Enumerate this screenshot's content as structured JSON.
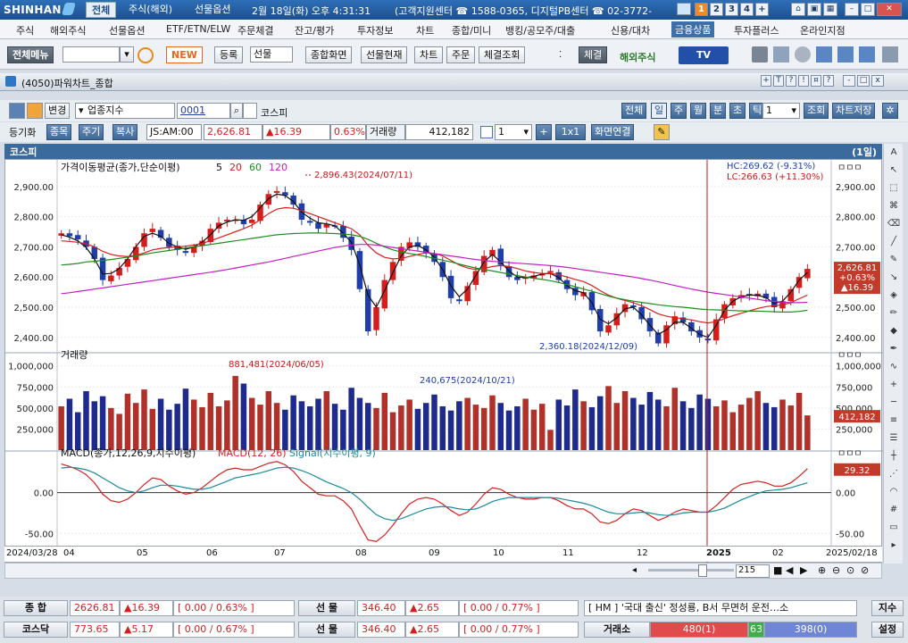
{
  "app": {
    "logo": "SHINHAN",
    "top_tabs": [
      "전체",
      "주식(해외)",
      "선물옵션"
    ],
    "datetime": "2월 18일(화) 오후 4:31:31",
    "support": "(고객지원센터 ☎ 1588-0365, 디지털PB센터 ☎ 02-3772-",
    "screen_numbers": [
      "1",
      "2",
      "3",
      "4",
      "+"
    ]
  },
  "menu": [
    "주식",
    "해외주식",
    "선물옵션",
    "ETF/ETN/ELW",
    "주문체결",
    "잔고/평가",
    "투자정보",
    "차트",
    "종합/미니",
    "뱅킹/공모주/대출",
    "신용/대차",
    "금융상품",
    "투자플러스",
    "온라인지점"
  ],
  "toolbar": {
    "all_menu": "전체메뉴",
    "new_badge": "NEW",
    "register": "등록",
    "register_select": "선물",
    "buttons": [
      "종합화면",
      "선물현재",
      "차트",
      "주문",
      "체결조회"
    ],
    "exec": "체결",
    "overseas": "해외주식",
    "tv": "TV"
  },
  "window": {
    "title": "(4050)파워차트_종합",
    "controls": [
      "+",
      "T",
      "?",
      "!",
      "¤",
      "?",
      "-",
      "□",
      "x"
    ]
  },
  "controls": {
    "change": "변경",
    "index_type": "업종지수",
    "code": "0001",
    "name": "코스피",
    "periods": [
      "전체",
      "일",
      "주",
      "월",
      "분",
      "초",
      "틱"
    ],
    "active_period": "일",
    "count": "1",
    "query": "조회",
    "save": "차트저장",
    "row2_label": "등기화",
    "row2_buttons": [
      "종목",
      "주기",
      "복사"
    ],
    "time_field": "JS:AM:00",
    "price": "2,626.81",
    "change_val": "▲16.39",
    "pct": "0.63%",
    "vol_label": "거래량",
    "vol": "412,182",
    "layout_count": "1",
    "plus": "+",
    "layout_grid": "1x1",
    "link": "화면연결"
  },
  "chart_title": {
    "name": "코스피",
    "period": "(1일)"
  },
  "chart_data": [
    {
      "type": "candlestick",
      "title": "가격이동평균(종가,단순이평) 5 20 60 120",
      "ma_periods": [
        "5",
        "20",
        "60",
        "120"
      ],
      "ma_colors": [
        "#111111",
        "#d42020",
        "#1e8c1e",
        "#c020c0"
      ],
      "y_ticks": [
        "2,900.00",
        "2,800.00",
        "2,700.00",
        "2,600.00",
        "2,500.00",
        "2,400.00"
      ],
      "y_tick_values": [
        2900,
        2800,
        2700,
        2600,
        2500,
        2400
      ],
      "ylim": [
        2355,
        2935
      ],
      "close_path": [
        2745,
        2735,
        2725,
        2700,
        2660,
        2590,
        2605,
        2630,
        2660,
        2700,
        2745,
        2760,
        2730,
        2700,
        2690,
        2680,
        2700,
        2720,
        2760,
        2780,
        2790,
        2790,
        2775,
        2790,
        2840,
        2875,
        2885,
        2870,
        2840,
        2790,
        2780,
        2760,
        2775,
        2770,
        2730,
        2690,
        2560,
        2420,
        2500,
        2590,
        2650,
        2700,
        2715,
        2700,
        2680,
        2650,
        2600,
        2530,
        2520,
        2570,
        2620,
        2670,
        2690,
        2640,
        2600,
        2590,
        2600,
        2605,
        2610,
        2620,
        2590,
        2560,
        2540,
        2550,
        2490,
        2420,
        2440,
        2480,
        2510,
        2500,
        2460,
        2420,
        2380,
        2440,
        2470,
        2450,
        2420,
        2400,
        2390,
        2460,
        2510,
        2530,
        2540,
        2540,
        2545,
        2530,
        2500,
        2520,
        2560,
        2600,
        2627
      ],
      "ma5_path": [
        2740,
        2732,
        2720,
        2698,
        2660,
        2610,
        2612,
        2628,
        2660,
        2700,
        2735,
        2745,
        2735,
        2712,
        2700,
        2692,
        2700,
        2716,
        2740,
        2770,
        2782,
        2790,
        2788,
        2800,
        2830,
        2860,
        2875,
        2870,
        2850,
        2815,
        2795,
        2780,
        2776,
        2770,
        2745,
        2715,
        2640,
        2540,
        2500,
        2555,
        2615,
        2670,
        2700,
        2705,
        2690,
        2665,
        2625,
        2570,
        2535,
        2560,
        2605,
        2650,
        2675,
        2650,
        2620,
        2600,
        2598,
        2602,
        2610,
        2612,
        2598,
        2572,
        2555,
        2548,
        2515,
        2460,
        2445,
        2465,
        2495,
        2500,
        2475,
        2440,
        2410,
        2425,
        2450,
        2450,
        2430,
        2410,
        2400,
        2440,
        2490,
        2520,
        2535,
        2540,
        2540,
        2532,
        2512,
        2520,
        2550,
        2590,
        2615
      ],
      "ma20_path": [
        2720,
        2718,
        2715,
        2710,
        2700,
        2685,
        2675,
        2670,
        2668,
        2672,
        2680,
        2690,
        2695,
        2698,
        2700,
        2702,
        2706,
        2712,
        2720,
        2730,
        2740,
        2750,
        2760,
        2772,
        2790,
        2810,
        2825,
        2830,
        2828,
        2820,
        2810,
        2800,
        2790,
        2780,
        2770,
        2760,
        2740,
        2705,
        2680,
        2665,
        2660,
        2662,
        2668,
        2675,
        2680,
        2678,
        2670,
        2655,
        2640,
        2630,
        2625,
        2628,
        2635,
        2638,
        2635,
        2628,
        2620,
        2615,
        2612,
        2612,
        2608,
        2600,
        2592,
        2585,
        2572,
        2555,
        2540,
        2530,
        2522,
        2515,
        2505,
        2492,
        2478,
        2470,
        2465,
        2462,
        2458,
        2452,
        2448,
        2452,
        2462,
        2472,
        2480,
        2488,
        2496,
        2502,
        2505,
        2508,
        2515,
        2528,
        2540
      ],
      "ma60_path": [
        2640,
        2642,
        2645,
        2650,
        2652,
        2655,
        2658,
        2662,
        2666,
        2670,
        2675,
        2680,
        2684,
        2688,
        2692,
        2696,
        2700,
        2704,
        2708,
        2712,
        2716,
        2720,
        2724,
        2728,
        2732,
        2736,
        2740,
        2742,
        2744,
        2745,
        2746,
        2746,
        2745,
        2744,
        2742,
        2740,
        2735,
        2725,
        2712,
        2700,
        2690,
        2683,
        2678,
        2673,
        2668,
        2662,
        2656,
        2650,
        2643,
        2636,
        2630,
        2625,
        2620,
        2615,
        2610,
        2605,
        2600,
        2596,
        2592,
        2588,
        2582,
        2575,
        2568,
        2560,
        2553,
        2545,
        2537,
        2530,
        2525,
        2520,
        2516,
        2512,
        2508,
        2505,
        2502,
        2500,
        2497,
        2494,
        2492,
        2491,
        2490,
        2489,
        2488,
        2487,
        2487,
        2486,
        2485,
        2484,
        2484,
        2486,
        2490
      ],
      "ma120_path": [
        2545,
        2548,
        2552,
        2556,
        2560,
        2564,
        2568,
        2572,
        2576,
        2580,
        2584,
        2588,
        2592,
        2596,
        2600,
        2604,
        2608,
        2612,
        2616,
        2620,
        2625,
        2630,
        2635,
        2640,
        2645,
        2650,
        2656,
        2662,
        2668,
        2674,
        2680,
        2686,
        2692,
        2698,
        2702,
        2706,
        2708,
        2708,
        2706,
        2702,
        2698,
        2694,
        2690,
        2686,
        2682,
        2678,
        2674,
        2670,
        2666,
        2662,
        2658,
        2655,
        2652,
        2650,
        2648,
        2646,
        2644,
        2642,
        2640,
        2638,
        2635,
        2632,
        2628,
        2624,
        2620,
        2616,
        2612,
        2608,
        2604,
        2600,
        2595,
        2590,
        2584,
        2578,
        2572,
        2566,
        2560,
        2555,
        2550,
        2546,
        2542,
        2538,
        2534,
        2530,
        2526,
        2522,
        2519,
        2517,
        2515,
        2515,
        2516
      ],
      "annotations": {
        "high": "2,896.43(2024/07/11)",
        "low": "2,360.18(2024/12/09)",
        "hc": "HC:269.62 (-9.31%)",
        "lc": "LC:266.63 (+11.30%)"
      },
      "last_label": [
        "2,626.81",
        "+0.63%",
        "▲16.39"
      ],
      "panel_buttons": "ㅁㅁㅁ"
    },
    {
      "type": "bar",
      "title": "거래량",
      "y_ticks": [
        "1,000,000",
        "750,000",
        "500,000",
        "250,000"
      ],
      "y_tick_values": [
        1000000,
        750000,
        500000,
        250000
      ],
      "ylim": [
        0,
        1050000
      ],
      "values": [
        520000,
        610000,
        450000,
        700000,
        580000,
        640000,
        500000,
        430000,
        670000,
        560000,
        720000,
        490000,
        610000,
        480000,
        550000,
        730000,
        600000,
        510000,
        680000,
        520000,
        590000,
        881481,
        790000,
        620000,
        540000,
        700000,
        560000,
        480000,
        650000,
        580000,
        520000,
        610000,
        700000,
        550000,
        480000,
        740000,
        620000,
        560000,
        500000,
        680000,
        450000,
        530000,
        600000,
        490000,
        560000,
        660000,
        520000,
        470000,
        580000,
        620000,
        540000,
        500000,
        650000,
        560000,
        470000,
        520000,
        610000,
        480000,
        550000,
        240675,
        600000,
        530000,
        720000,
        580000,
        510000,
        640000,
        760000,
        560000,
        700000,
        620000,
        540000,
        690000,
        600000,
        520000,
        740000,
        580000,
        500000,
        660000,
        610000,
        520000,
        590000,
        450000,
        540000,
        620000,
        700000,
        560000,
        510000,
        600000,
        530000,
        680000,
        412182
      ],
      "annotations": {
        "high": "881,481(2024/06/05)",
        "mid": "240,675(2024/10/21)"
      },
      "last_label": "412,182",
      "panel_buttons": "ㅁㅁㅁ"
    },
    {
      "type": "line",
      "title": "MACD(종가,12,26,9,지수이평)",
      "legend": [
        "MACD(12, 26)",
        "Signal(지수이평, 9)"
      ],
      "y_ticks": [
        "0.00",
        "-50.00"
      ],
      "y_tick_values": [
        0,
        -50
      ],
      "ylim": [
        -65,
        40
      ],
      "macd": [
        35,
        32,
        28,
        22,
        12,
        -2,
        -10,
        -12,
        -8,
        0,
        10,
        18,
        16,
        8,
        2,
        -2,
        0,
        6,
        14,
        22,
        28,
        30,
        28,
        28,
        32,
        36,
        38,
        34,
        26,
        14,
        6,
        -2,
        -4,
        -4,
        -10,
        -20,
        -40,
        -58,
        -60,
        -52,
        -40,
        -26,
        -14,
        -8,
        -6,
        -8,
        -14,
        -22,
        -28,
        -24,
        -14,
        -2,
        6,
        4,
        -2,
        -6,
        -8,
        -8,
        -6,
        -6,
        -10,
        -16,
        -20,
        -20,
        -26,
        -36,
        -38,
        -34,
        -26,
        -20,
        -22,
        -28,
        -34,
        -30,
        -24,
        -20,
        -22,
        -24,
        -24,
        -16,
        -6,
        4,
        10,
        12,
        14,
        12,
        8,
        8,
        12,
        20,
        29.32
      ],
      "signal": [
        30,
        31,
        30,
        28,
        24,
        18,
        12,
        6,
        2,
        0,
        2,
        6,
        9,
        9,
        8,
        6,
        4,
        4,
        6,
        10,
        14,
        18,
        20,
        22,
        24,
        27,
        30,
        31,
        30,
        27,
        23,
        18,
        13,
        9,
        5,
        0,
        -8,
        -18,
        -27,
        -32,
        -34,
        -32,
        -28,
        -24,
        -20,
        -18,
        -17,
        -18,
        -20,
        -21,
        -20,
        -16,
        -11,
        -8,
        -6,
        -6,
        -6,
        -6,
        -6,
        -6,
        -7,
        -9,
        -11,
        -13,
        -16,
        -20,
        -24,
        -26,
        -26,
        -25,
        -24,
        -25,
        -27,
        -28,
        -27,
        -25,
        -24,
        -24,
        -24,
        -22,
        -19,
        -14,
        -9,
        -5,
        -1,
        2,
        3,
        4,
        6,
        9,
        12
      ],
      "last_label": "29.32",
      "panel_buttons": "ㅁㅁㅁ"
    }
  ],
  "x_axis": {
    "labels": [
      "2024/03/28",
      "04",
      "05",
      "06",
      "07",
      "08",
      "09",
      "10",
      "11",
      "12",
      "2025",
      "02",
      "2025/02/18"
    ],
    "count": "215"
  },
  "status": {
    "row1": {
      "label1": "종 합",
      "val1": "2626.81",
      "chg1": "▲16.39",
      "pct1": "[ 0.00 / 0.63% ]",
      "label2": "선 물",
      "val2": "346.40",
      "chg2": "▲2.65",
      "pct2": "[ 0.00 / 0.77% ]",
      "news": "[ HM ] '국대 출신' 정성룡, B서 무면허 운전…소",
      "right": "지수"
    },
    "row2": {
      "label1": "코스닥",
      "val1": "773.65",
      "chg1": "▲5.17",
      "pct1": "[ 0.00 / 0.67% ]",
      "label2": "선 물",
      "val2": "346.40",
      "chg2": "▲2.65",
      "pct2": "[ 0.00 / 0.77% ]",
      "exch": "거래소",
      "up": "480(1)",
      "flat": "63",
      "down": "398(0)",
      "right": "설정"
    }
  },
  "colors": {
    "up": "#d41e1e",
    "down": "#1f3ea8",
    "accent": "#3b6a9c"
  }
}
